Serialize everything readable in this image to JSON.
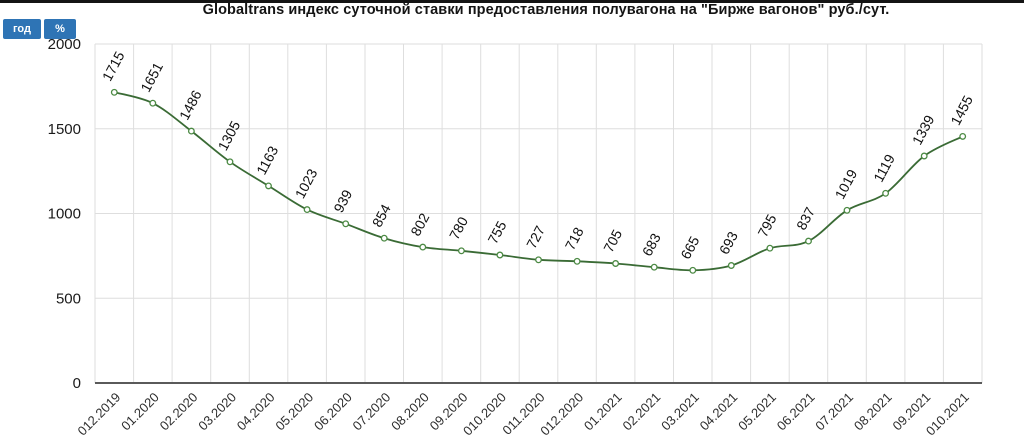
{
  "toolbar": {
    "year_button": "год",
    "percent_button": "%"
  },
  "colors": {
    "button_blue": "#2e74b5",
    "line_green": "#3a6b35",
    "marker_stroke": "#4c8a44",
    "marker_fill": "#ffffff",
    "grid_gray": "#dedede",
    "axis_gray": "#5a5a5a",
    "title_text": "#141414",
    "value_label_text": "#111111",
    "ytick_text": "#1a1a1a",
    "xtick_text": "#2e2e2e",
    "top_border": "#141414"
  },
  "chart_data": {
    "type": "line",
    "title": "Globaltrans индекс суточной ставки предоставления полувагона на \"Бирже вагонов\" руб./сут.",
    "categories": [
      "012.2019",
      "01.2020",
      "02.2020",
      "03.2020",
      "04.2020",
      "05.2020",
      "06.2020",
      "07.2020",
      "08.2020",
      "09.2020",
      "010.2020",
      "011.2020",
      "012.2020",
      "01.2021",
      "02.2021",
      "03.2021",
      "04.2021",
      "05.2021",
      "06.2021",
      "07.2021",
      "08.2021",
      "09.2021",
      "010.2021"
    ],
    "values": [
      1715,
      1651,
      1486,
      1305,
      1163,
      1023,
      939,
      854,
      802,
      780,
      755,
      727,
      718,
      705,
      683,
      665,
      693,
      795,
      837,
      1019,
      1119,
      1339,
      1455
    ],
    "ylim": [
      0,
      2000
    ],
    "yticks": [
      0,
      500,
      1000,
      1500,
      2000
    ],
    "xlabel": "",
    "ylabel": "",
    "grid": "on",
    "legend": "none",
    "marker": "open-circle",
    "point_labels": "values",
    "value_label_rotation_deg": -62,
    "xtick_rotation_deg": -45
  }
}
